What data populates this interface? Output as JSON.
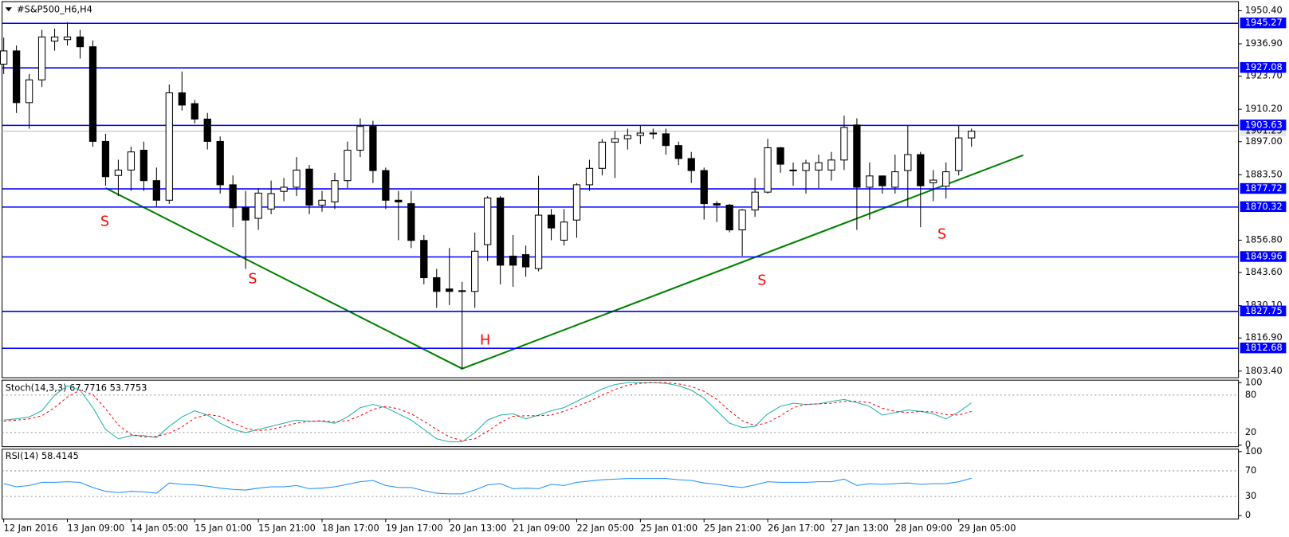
{
  "chart_data": [
    {
      "type": "candlestick",
      "title": "#S&P500_H6,H4",
      "categories": [
        "12 Jan 2016",
        null,
        null,
        null,
        null,
        "13 Jan 09:00",
        null,
        null,
        null,
        null,
        "14 Jan 05:00",
        null,
        null,
        null,
        null,
        "15 Jan 01:00",
        null,
        null,
        null,
        null,
        "15 Jan 21:00",
        null,
        null,
        null,
        null,
        "18 Jan 17:00",
        null,
        null,
        null,
        null,
        "19 Jan 17:00",
        null,
        null,
        null,
        null,
        "20 Jan 13:00",
        null,
        null,
        null,
        null,
        "21 Jan 09:00",
        null,
        null,
        null,
        null,
        "22 Jan 05:00",
        null,
        null,
        null,
        null,
        "25 Jan 01:00",
        null,
        null,
        null,
        null,
        "25 Jan 21:00",
        null,
        null,
        null,
        null,
        "26 Jan 17:00",
        null,
        null,
        null,
        null,
        "27 Jan 13:00",
        null,
        null,
        null,
        null,
        "28 Jan 09:00",
        null,
        null,
        null,
        null,
        "29 Jan 05:00",
        null
      ],
      "open": [
        1928.6,
        1934.0,
        1912.9,
        1922.2,
        1938.0,
        1938.6,
        1939.7,
        1935.7,
        1897.1,
        1883.2,
        1885.4,
        1893.5,
        1881.1,
        1873.1,
        1916.9,
        1912.5,
        1906.2,
        1897.1,
        1879.4,
        1870.0,
        1865.7,
        1869.5,
        1876.7,
        1878.4,
        1885.8,
        1871.1,
        1872.4,
        1881.1,
        1893.5,
        1903.2,
        1885.2,
        1873.1,
        1871.7,
        1856.7,
        1841.5,
        1836.9,
        1835.9,
        1835.9,
        1855.0,
        1874.0,
        1850.3,
        1850.9,
        1845.2,
        1867.0,
        1856.8,
        1865.0,
        1879.4,
        1886.1,
        1896.8,
        1898.2,
        1899.5,
        1900.2,
        1900.2,
        1895.4,
        1890.1,
        1885.2,
        1871.7,
        1871.1,
        1861.0,
        1869.1,
        1876.4,
        1894.5,
        1885.2,
        1885.2,
        1885.4,
        1885.4,
        1889.5,
        1903.8,
        1878.4,
        1883.0,
        1878.4,
        1885.2,
        1891.7,
        1880.2,
        1878.8,
        1885.2,
        1898.5
      ],
      "high": [
        1939.4,
        1936.2,
        1924.6,
        1942.6,
        1943.1,
        1945.7,
        1942.6,
        1938.3,
        1900.2,
        1889.6,
        1894.9,
        1897.0,
        1886.4,
        1920.3,
        1925.6,
        1914.0,
        1908.7,
        1899.1,
        1883.2,
        1876.9,
        1878.0,
        1881.1,
        1882.2,
        1890.7,
        1887.5,
        1876.9,
        1884.3,
        1897.0,
        1906.5,
        1905.5,
        1886.4,
        1876.9,
        1876.9,
        1858.9,
        1845.1,
        1853.6,
        1839.8,
        1859.9,
        1874.8,
        1874.8,
        1858.9,
        1854.6,
        1883.1,
        1869.5,
        1869.5,
        1880.1,
        1889.6,
        1898.1,
        1901.3,
        1902.3,
        1903.4,
        1902.3,
        1902.3,
        1897.0,
        1892.8,
        1886.4,
        1872.7,
        1871.6,
        1869.5,
        1882.2,
        1898.1,
        1894.9,
        1888.5,
        1889.6,
        1891.7,
        1892.8,
        1907.6,
        1906.5,
        1888.5,
        1883.2,
        1891.7,
        1903.4,
        1892.8,
        1885.4,
        1888.5,
        1903.4,
        1902.3
      ],
      "low": [
        1924.6,
        1908.7,
        1902.3,
        1919.3,
        1934.1,
        1936.2,
        1930.9,
        1894.9,
        1879.0,
        1874.8,
        1876.9,
        1876.9,
        1870.5,
        1871.6,
        1909.7,
        1904.4,
        1893.8,
        1875.8,
        1862.1,
        1845.1,
        1861.0,
        1867.4,
        1872.7,
        1874.8,
        1867.4,
        1868.4,
        1869.5,
        1878.0,
        1890.7,
        1880.1,
        1869.5,
        1856.8,
        1853.6,
        1838.8,
        1829.2,
        1830.3,
        1804.1,
        1829.2,
        1848.3,
        1838.8,
        1837.8,
        1841.9,
        1844.1,
        1856.8,
        1854.6,
        1857.8,
        1876.9,
        1883.2,
        1882.2,
        1893.8,
        1896.0,
        1898.1,
        1891.7,
        1887.5,
        1880.1,
        1865.2,
        1864.2,
        1860.0,
        1850.4,
        1866.3,
        1875.8,
        1884.3,
        1879.0,
        1875.8,
        1878.0,
        1881.1,
        1885.4,
        1861.0,
        1865.2,
        1875.8,
        1875.8,
        1870.5,
        1862.1,
        1872.7,
        1873.8,
        1883.2,
        1894.9
      ],
      "close": [
        1934.0,
        1912.9,
        1922.2,
        1939.7,
        1939.7,
        1939.7,
        1935.7,
        1897.1,
        1882.7,
        1885.4,
        1892.8,
        1881.1,
        1873.1,
        1916.9,
        1911.9,
        1906.2,
        1897.1,
        1879.4,
        1870.0,
        1865.0,
        1876.0,
        1875.8,
        1878.4,
        1885.4,
        1871.1,
        1873.1,
        1881.1,
        1893.5,
        1903.2,
        1885.2,
        1873.1,
        1872.4,
        1856.7,
        1841.5,
        1835.9,
        1835.9,
        1836.2,
        1852.3,
        1874.0,
        1846.6,
        1846.6,
        1845.9,
        1867.0,
        1861.8,
        1864.2,
        1879.4,
        1886.1,
        1896.8,
        1898.2,
        1899.5,
        1900.5,
        1900.5,
        1895.4,
        1890.1,
        1885.2,
        1871.7,
        1871.1,
        1861.0,
        1869.1,
        1876.4,
        1894.5,
        1887.8,
        1885.4,
        1888.2,
        1888.4,
        1889.5,
        1902.8,
        1878.4,
        1883.0,
        1879.0,
        1884.7,
        1891.7,
        1879.0,
        1881.3,
        1884.7,
        1898.5,
        1901.25
      ],
      "up_color": "#ffffff",
      "down_color": "#000000",
      "ylim": [
        1800.7,
        1954.1
      ],
      "yticks": [
        {
          "value": 1950.4,
          "label": "1950.40"
        },
        {
          "value": 1936.9,
          "label": "1936.90"
        },
        {
          "value": 1923.7,
          "label": "1923.70"
        },
        {
          "value": 1910.2,
          "label": "1910.20"
        },
        {
          "value": 1897.0,
          "label": "1897.00"
        },
        {
          "value": 1883.5,
          "label": "1883.50"
        },
        {
          "value": 1856.8,
          "label": "1856.80"
        },
        {
          "value": 1843.6,
          "label": "1843.60"
        },
        {
          "value": 1830.1,
          "label": "1830.10"
        },
        {
          "value": 1816.9,
          "label": "1816.90"
        },
        {
          "value": 1803.4,
          "label": "1803.40"
        }
      ],
      "hlines": {
        "values": [
          1945.27,
          1927.08,
          1903.63,
          1877.72,
          1870.32,
          1849.96,
          1827.75,
          1812.68
        ],
        "color": "#0000ff"
      },
      "annotations": [
        "S",
        "S",
        "H",
        "S",
        "S"
      ]
    },
    {
      "type": "line",
      "title": "Stoch(14,3,3) 67.7716 53.7753",
      "series": [
        {
          "color": "#20b2aa",
          "style": "solid",
          "values": [
            40,
            42,
            45,
            55,
            80,
            95,
            88,
            60,
            25,
            10,
            15,
            15,
            12,
            30,
            45,
            55,
            48,
            35,
            25,
            20,
            25,
            30,
            35,
            40,
            38,
            38,
            35,
            45,
            60,
            65,
            60,
            50,
            40,
            25,
            10,
            5,
            5,
            20,
            40,
            48,
            50,
            42,
            48,
            55,
            60,
            70,
            80,
            90,
            97,
            100,
            100,
            100,
            99,
            95,
            88,
            75,
            55,
            35,
            28,
            30,
            50,
            62,
            67,
            65,
            66,
            70,
            73,
            68,
            62,
            48,
            52,
            56,
            54,
            50,
            42,
            53,
            67.7716
          ]
        },
        {
          "color": "#ff0000",
          "style": "dashed",
          "values": [
            38,
            40,
            42,
            47,
            60,
            77,
            88,
            81,
            58,
            32,
            17,
            13,
            14,
            19,
            29,
            43,
            49,
            46,
            36,
            27,
            23,
            25,
            30,
            35,
            38,
            39,
            37,
            39,
            47,
            57,
            62,
            58,
            50,
            38,
            25,
            13,
            7,
            10,
            22,
            36,
            46,
            47,
            47,
            48,
            54,
            62,
            70,
            80,
            89,
            96,
            99,
            100,
            100,
            98,
            94,
            86,
            73,
            55,
            39,
            31,
            36,
            47,
            60,
            65,
            66,
            67,
            70,
            70,
            68,
            59,
            54,
            52,
            54,
            53,
            49,
            48,
            53.7753
          ]
        }
      ],
      "ylim": [
        0,
        100
      ],
      "yticks": [
        100,
        80,
        20,
        0
      ]
    },
    {
      "type": "line",
      "title": "RSI(14) 58.4145",
      "series": [
        {
          "color": "#1e90ff",
          "style": "solid",
          "values": [
            50,
            45,
            47,
            52,
            52,
            53,
            52,
            44,
            38,
            36,
            38,
            37,
            35,
            51,
            49,
            48,
            46,
            43,
            41,
            40,
            43,
            45,
            45,
            47,
            42,
            43,
            45,
            49,
            53,
            55,
            47,
            44,
            44,
            39,
            35,
            34,
            34,
            40,
            48,
            50,
            42,
            43,
            42,
            49,
            47,
            52,
            54,
            56,
            57,
            58,
            58,
            58,
            58,
            56,
            55,
            51,
            49,
            46,
            44,
            48,
            53,
            52,
            52,
            52,
            53,
            53,
            57,
            47,
            50,
            49,
            50,
            51,
            49,
            50,
            50,
            53,
            58.4145
          ]
        }
      ],
      "ylim": [
        0,
        100
      ],
      "yticks": [
        100,
        70,
        30,
        0
      ]
    }
  ]
}
